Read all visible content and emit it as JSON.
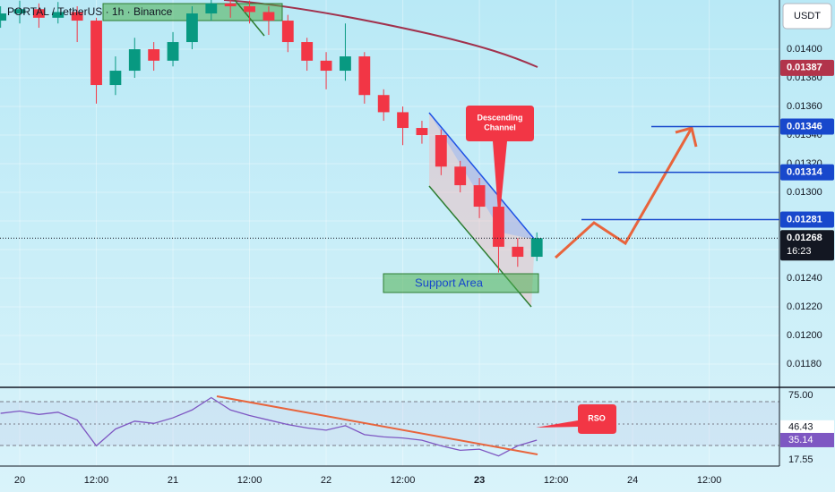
{
  "chart_data": [
    {
      "type": "candlestick",
      "title": "PORTAL / TetherUS · 1h · Binance",
      "currency": "USDT",
      "x": [
        -3,
        0,
        3,
        6,
        9,
        12,
        15,
        18,
        21,
        24,
        27,
        30,
        33,
        36,
        39,
        42,
        45,
        48,
        51,
        54,
        57,
        60,
        63,
        66,
        69,
        72,
        75,
        78,
        81
      ],
      "open": [
        0.0142,
        0.01425,
        0.01428,
        0.01422,
        0.01426,
        0.0142,
        0.01375,
        0.01385,
        0.014,
        0.01392,
        0.01405,
        0.01425,
        0.01432,
        0.0143,
        0.01426,
        0.0142,
        0.01405,
        0.01392,
        0.01385,
        0.01395,
        0.01368,
        0.01356,
        0.01345,
        0.0134,
        0.01318,
        0.01305,
        0.0129,
        0.01262,
        0.01255
      ],
      "high": [
        0.0143,
        0.01434,
        0.01432,
        0.01433,
        0.0143,
        0.01422,
        0.01395,
        0.01408,
        0.01405,
        0.01412,
        0.0143,
        0.01438,
        0.01436,
        0.01434,
        0.0143,
        0.01424,
        0.01408,
        0.01398,
        0.01418,
        0.01398,
        0.01372,
        0.0136,
        0.0135,
        0.01344,
        0.01322,
        0.0131,
        0.01294,
        0.01268,
        0.01272
      ],
      "low": [
        0.01415,
        0.01418,
        0.01415,
        0.01418,
        0.01405,
        0.01362,
        0.01368,
        0.0138,
        0.01385,
        0.01388,
        0.014,
        0.0142,
        0.01422,
        0.01418,
        0.0141,
        0.01398,
        0.01385,
        0.01372,
        0.01378,
        0.01362,
        0.0135,
        0.01333,
        0.01334,
        0.01312,
        0.013,
        0.01282,
        0.01244,
        0.01248,
        0.01252
      ],
      "close": [
        0.01425,
        0.01428,
        0.01422,
        0.01426,
        0.0142,
        0.01375,
        0.01385,
        0.014,
        0.01392,
        0.01405,
        0.01425,
        0.01432,
        0.0143,
        0.01426,
        0.0142,
        0.01405,
        0.01392,
        0.01385,
        0.01395,
        0.01368,
        0.01356,
        0.01345,
        0.0134,
        0.01318,
        0.01305,
        0.0129,
        0.01262,
        0.01255,
        0.01268
      ],
      "up_color": "#089981",
      "down_color": "#f23645",
      "xlim": [
        -3.09,
        119
      ],
      "ylim": [
        0.011644,
        0.014344
      ],
      "xticks": [
        {
          "value": 0,
          "label": "20"
        },
        {
          "value": 12,
          "label": "12:00"
        },
        {
          "value": 24,
          "label": "21"
        },
        {
          "value": 36,
          "label": "12:00"
        },
        {
          "value": 48,
          "label": "22"
        },
        {
          "value": 60,
          "label": "12:00"
        },
        {
          "value": 72,
          "label": "23"
        },
        {
          "value": 84,
          "label": "12:00"
        },
        {
          "value": 96,
          "label": "24"
        },
        {
          "value": 108,
          "label": "12:00"
        }
      ],
      "yticks": [
        {
          "value": 0.014,
          "label": "0.01400"
        },
        {
          "value": 0.0138,
          "label": "0.01380"
        },
        {
          "value": 0.0136,
          "label": "0.01360"
        },
        {
          "value": 0.0134,
          "label": "0.01340"
        },
        {
          "value": 0.0132,
          "label": "0.01320"
        },
        {
          "value": 0.013,
          "label": "0.01300"
        },
        {
          "value": 0.0128,
          "label": "0.01280"
        },
        {
          "value": 0.0126,
          "label": "0.01260"
        },
        {
          "value": 0.0124,
          "label": "0.01240"
        },
        {
          "value": 0.0122,
          "label": "0.01220"
        },
        {
          "value": 0.012,
          "label": "0.01200"
        },
        {
          "value": 0.0118,
          "label": "0.01180"
        }
      ],
      "levels": [
        {
          "value": 0.01346,
          "label": "0.01346",
          "color": "#1848cc"
        },
        {
          "value": 0.01314,
          "label": "0.01314",
          "color": "#1848cc"
        },
        {
          "value": 0.01281,
          "label": "0.01281",
          "color": "#1848cc"
        }
      ],
      "ma_label": {
        "value": 0.01387,
        "label": "0.01387",
        "color": "#b2344b"
      },
      "last_price": {
        "value": 0.01268,
        "label": "0.01268",
        "countdown": "16:23"
      },
      "annotations": {
        "channel": [
          "Descending",
          "Channel"
        ],
        "support": "Support Area",
        "rsi_note": "RSO"
      }
    },
    {
      "type": "line",
      "x": [
        -3,
        0,
        3,
        6,
        9,
        12,
        15,
        18,
        21,
        24,
        27,
        30,
        33,
        36,
        39,
        42,
        45,
        48,
        51,
        54,
        57,
        60,
        63,
        66,
        69,
        72,
        75,
        78,
        81
      ],
      "values": [
        59,
        61,
        58,
        60,
        53,
        30,
        45,
        52,
        50,
        55,
        62,
        73,
        62,
        57,
        53,
        49,
        46,
        44,
        48,
        40,
        38,
        37,
        35,
        30,
        26,
        27,
        21,
        30,
        35.14
      ],
      "color": "#7e57c2",
      "xlim": [
        -3.09,
        119
      ],
      "ylim": [
        12.76,
        81.38
      ],
      "yticks": [
        {
          "value": 75,
          "label": "75.00"
        },
        {
          "value": 17.55,
          "label": "17.55"
        }
      ],
      "badges": [
        {
          "value": 46.43,
          "label": "46.43",
          "color": "#ffffff"
        },
        {
          "value": 35.14,
          "label": "35.14",
          "color": "#7e57c2"
        }
      ]
    }
  ]
}
